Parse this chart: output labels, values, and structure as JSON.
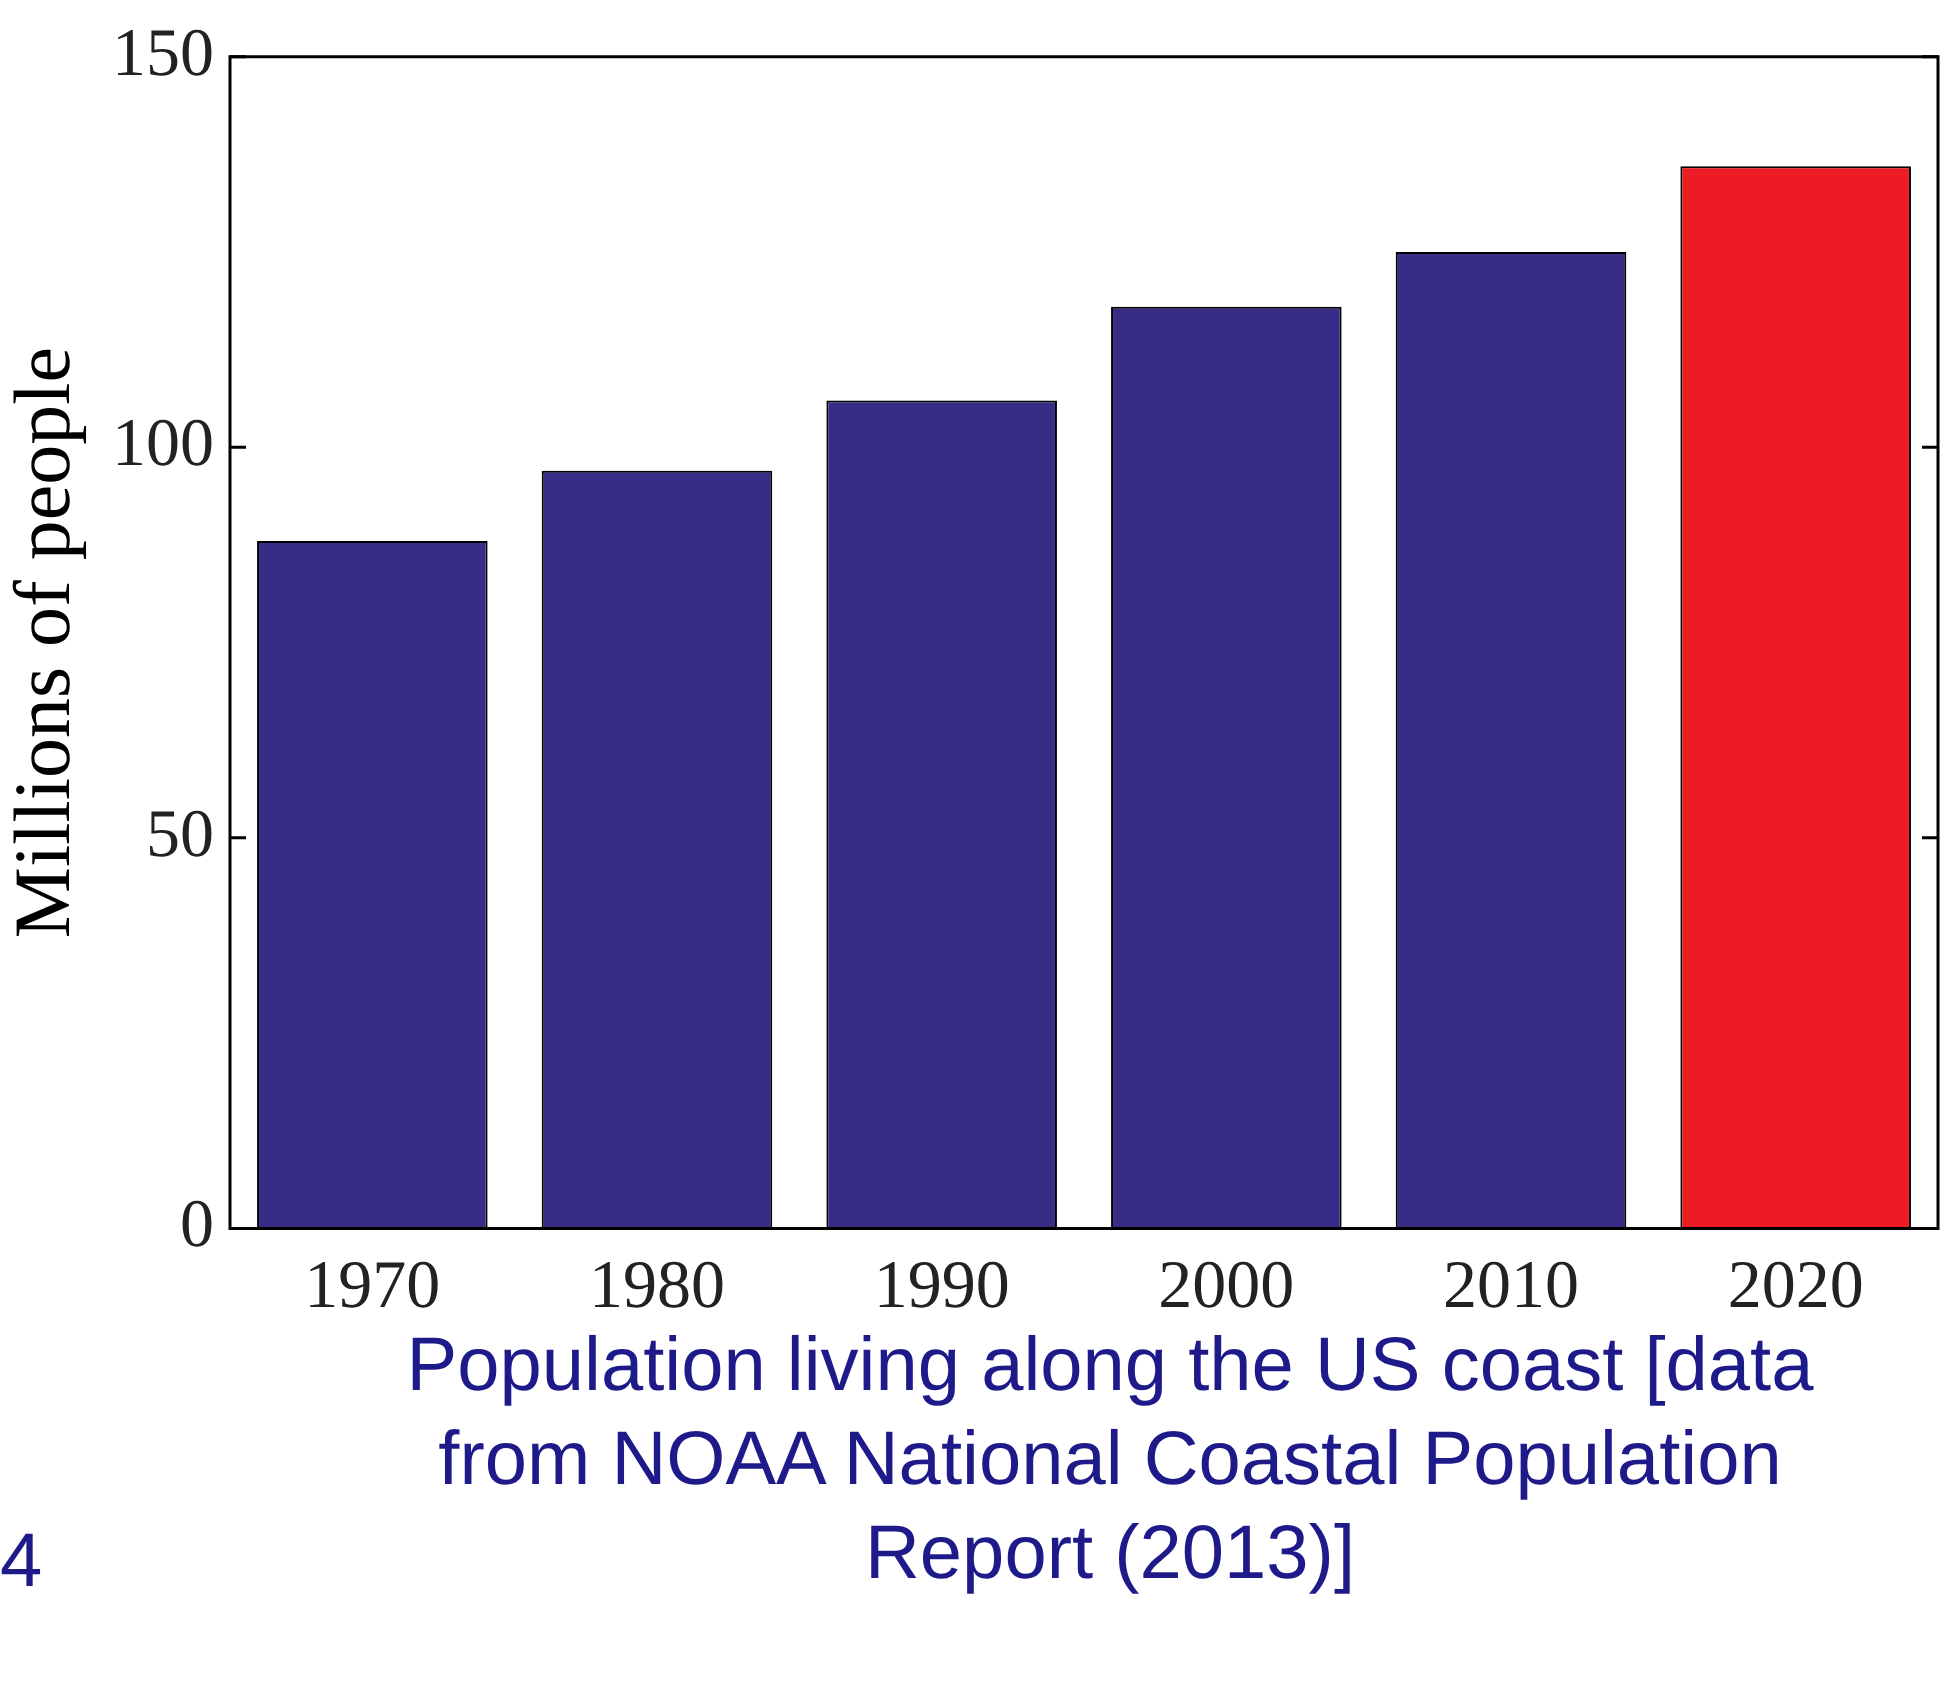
{
  "chart_data": {
    "type": "bar",
    "ylabel": "Millions of people",
    "categories": [
      "1970",
      "1980",
      "1990",
      "2000",
      "2010",
      "2020"
    ],
    "values": [
      88,
      97,
      106,
      118,
      125,
      136
    ],
    "colors": [
      "#372c86",
      "#372c86",
      "#372c86",
      "#372c86",
      "#372c86",
      "#ed1c24"
    ],
    "ylim": [
      0,
      150
    ],
    "yticks": [
      0,
      50,
      100,
      150
    ],
    "grid": false,
    "legend": false,
    "annotations": [
      "4",
      "Population living along the US coast [data from NOAA National Coastal Population Report (2013)]"
    ]
  }
}
